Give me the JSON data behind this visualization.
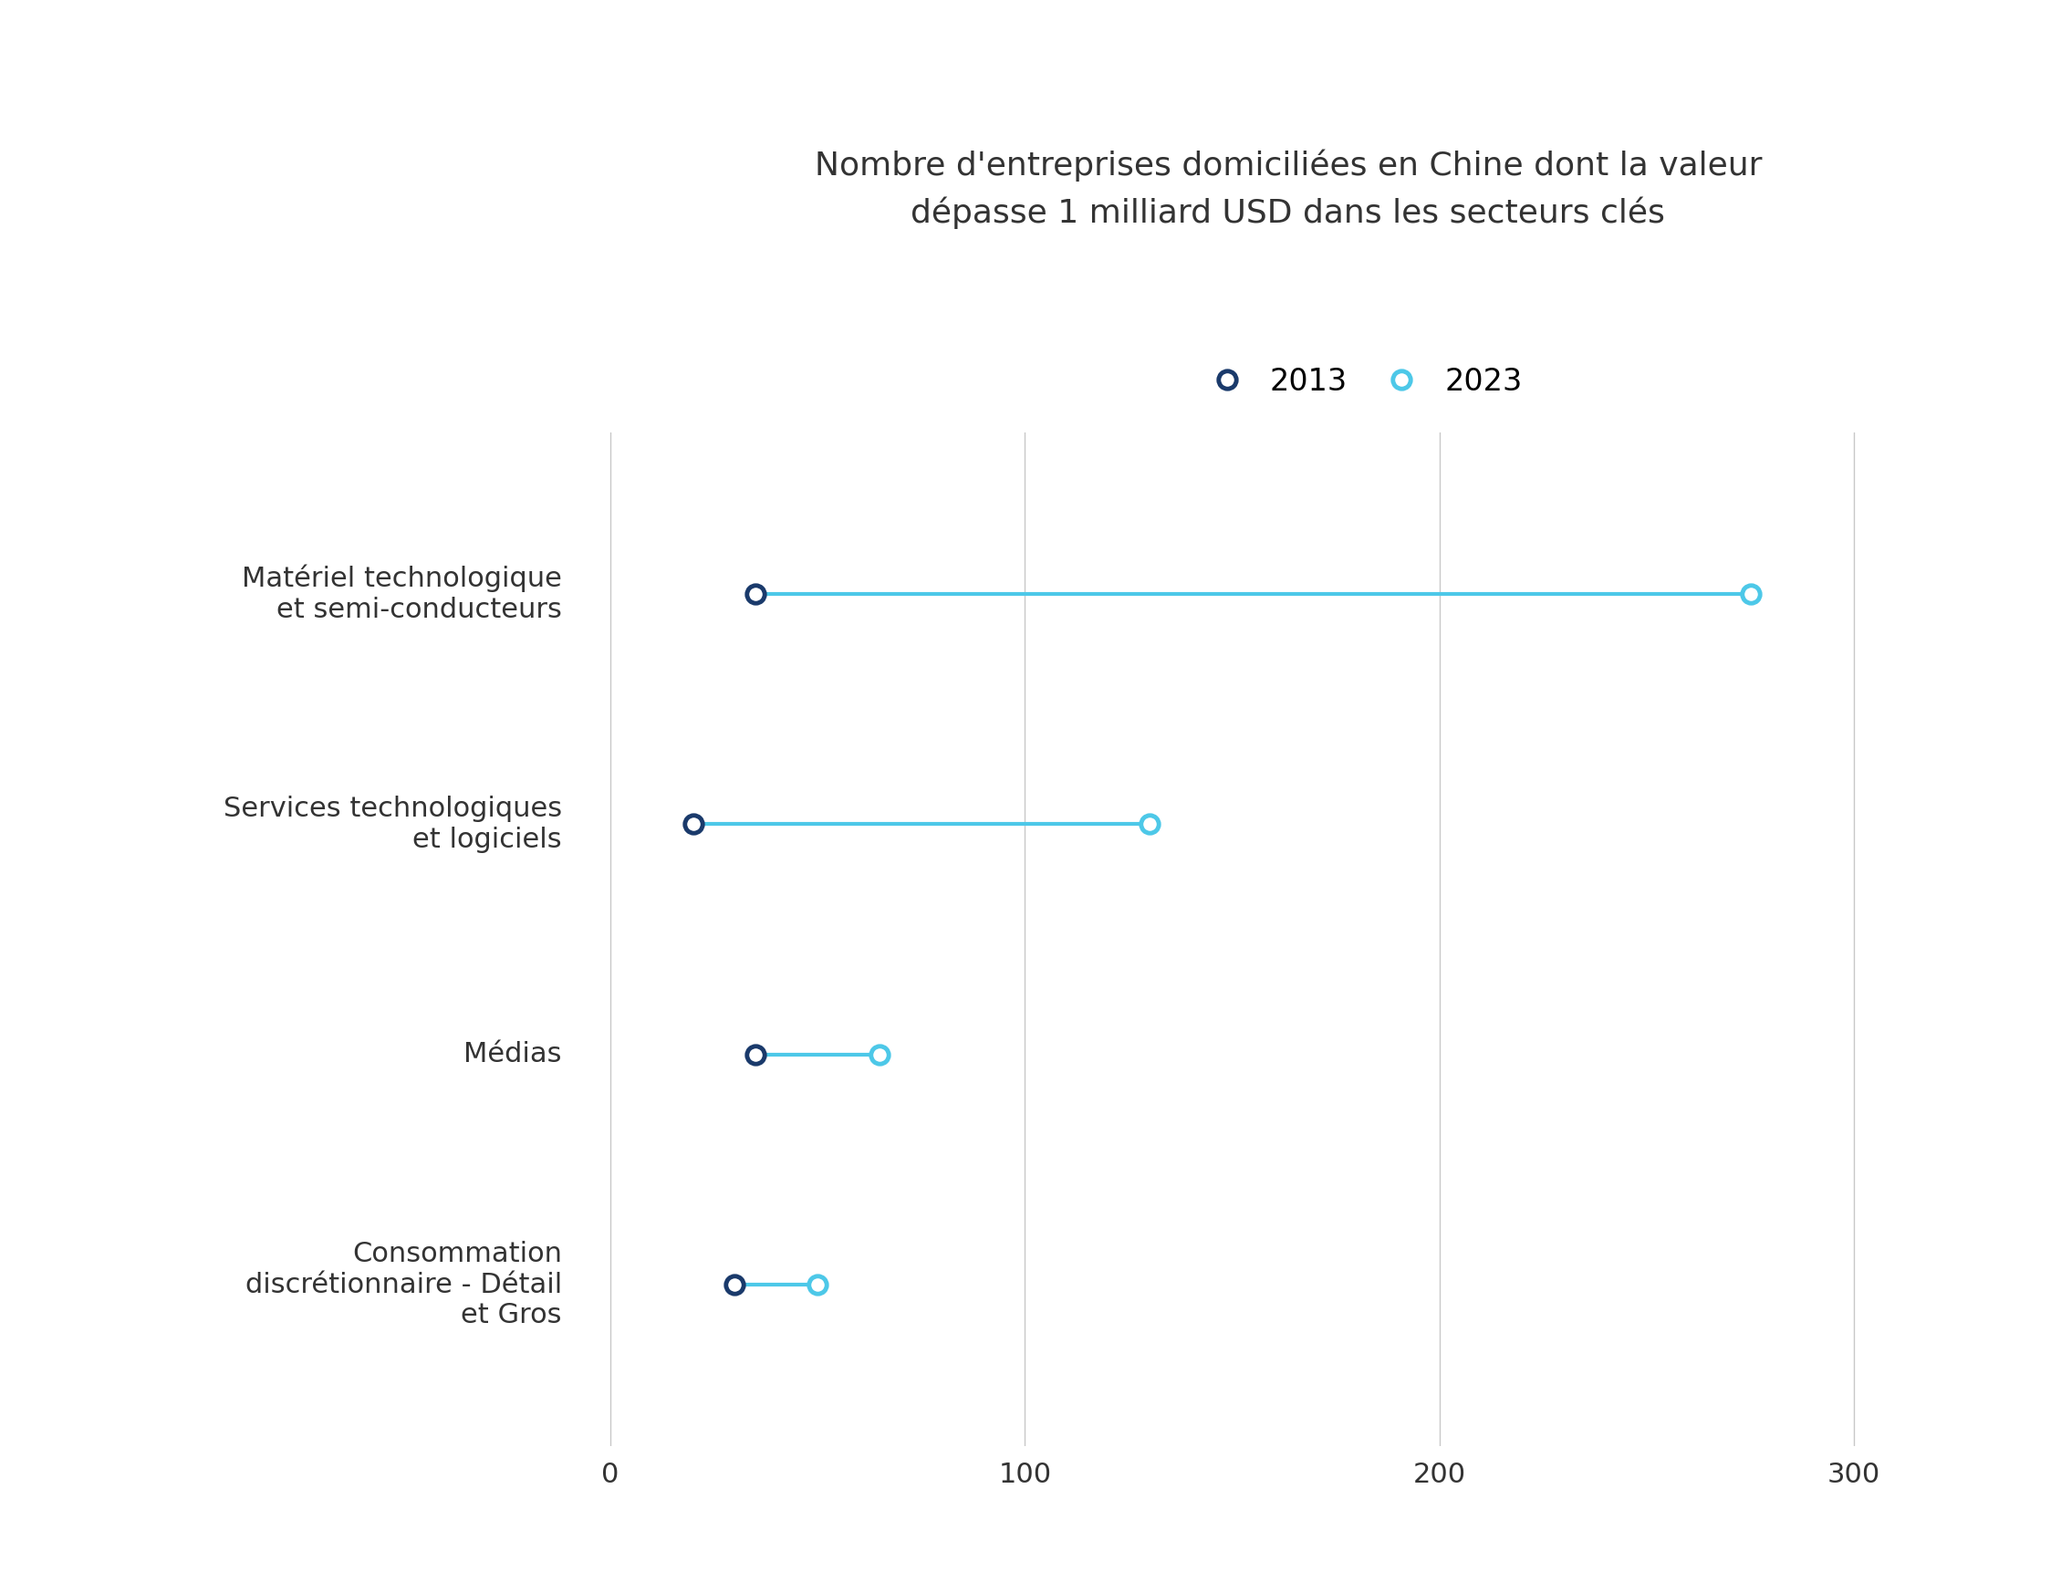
{
  "title_line1": "Nombre d'entreprises domiciliées en Chine dont la valeur",
  "title_line2": "dépasse 1 milliard USD dans les secteurs clés",
  "categories": [
    "Matériel technologique\net semi-conducteurs",
    "Services technologiques\net logiciels",
    "Médias",
    "Consommation\ndiscrétionnaire - Détail\net Gros"
  ],
  "values_2013": [
    35,
    20,
    35,
    30
  ],
  "values_2023": [
    275,
    130,
    65,
    50
  ],
  "color_2013": "#1a3a6b",
  "color_2023": "#4dc8e8",
  "line_color": "#4dc8e8",
  "marker_size": 14,
  "line_width": 3.0,
  "xlim": [
    -8,
    335
  ],
  "xticks": [
    0,
    100,
    200,
    300
  ],
  "background_color": "#ffffff",
  "grid_color": "#c8c8c8",
  "title_fontsize": 26,
  "label_fontsize": 22,
  "tick_fontsize": 22,
  "legend_fontsize": 24
}
